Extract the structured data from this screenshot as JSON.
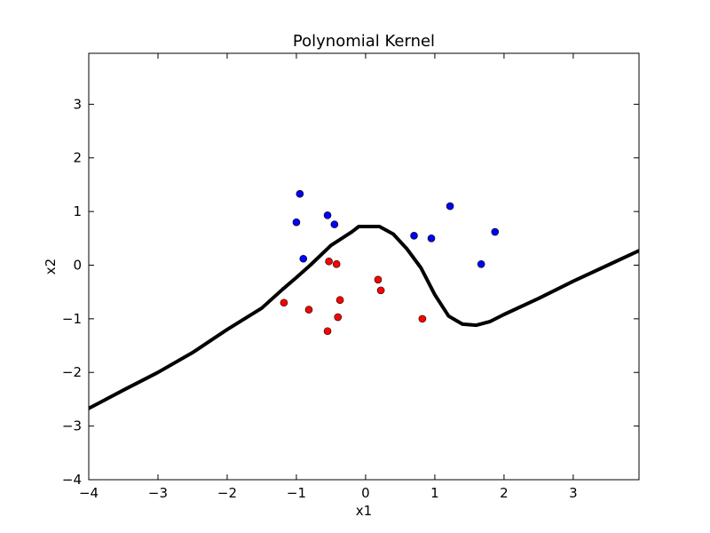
{
  "chart_data": {
    "type": "scatter",
    "title": "Polynomial Kernel",
    "xlabel": "x1",
    "ylabel": "x2",
    "xlim": [
      -4,
      3.95
    ],
    "ylim": [
      -4,
      3.95
    ],
    "grid": false,
    "x_ticks": [
      -4,
      -3,
      -2,
      -1,
      0,
      1,
      2,
      3
    ],
    "y_ticks": [
      -4,
      -3,
      -2,
      -1,
      0,
      1,
      2,
      3
    ],
    "x_tick_labels": [
      "−4",
      "−3",
      "−2",
      "−1",
      "0",
      "1",
      "2",
      "3"
    ],
    "y_tick_labels": [
      "−4",
      "−3",
      "−2",
      "−1",
      "0",
      "1",
      "2",
      "3"
    ],
    "colors": {
      "class_a": "#0000ff",
      "class_b": "#ff0000",
      "boundary": "#000000"
    },
    "series": [
      {
        "points": [
          [
            -0.95,
            1.33
          ],
          [
            -1.0,
            0.8
          ],
          [
            -0.55,
            0.93
          ],
          [
            -0.45,
            0.76
          ],
          [
            -0.9,
            0.12
          ],
          [
            0.7,
            0.55
          ],
          [
            0.95,
            0.5
          ],
          [
            1.22,
            1.1
          ],
          [
            1.87,
            0.62
          ],
          [
            1.67,
            0.02
          ]
        ]
      },
      {
        "points": [
          [
            -1.18,
            -0.7
          ],
          [
            -0.82,
            -0.83
          ],
          [
            -0.53,
            0.07
          ],
          [
            -0.42,
            0.02
          ],
          [
            -0.37,
            -0.65
          ],
          [
            -0.4,
            -0.97
          ],
          [
            -0.55,
            -1.23
          ],
          [
            0.18,
            -0.27
          ],
          [
            0.22,
            -0.47
          ],
          [
            0.82,
            -1.0
          ]
        ]
      }
    ],
    "boundary_curve": [
      [
        -4.0,
        -2.67
      ],
      [
        -3.5,
        -2.33
      ],
      [
        -3.0,
        -2.0
      ],
      [
        -2.5,
        -1.63
      ],
      [
        -2.0,
        -1.2
      ],
      [
        -1.5,
        -0.8
      ],
      [
        -1.2,
        -0.45
      ],
      [
        -1.0,
        -0.23
      ],
      [
        -0.8,
        0.0
      ],
      [
        -0.5,
        0.37
      ],
      [
        -0.2,
        0.62
      ],
      [
        -0.1,
        0.72
      ],
      [
        0.2,
        0.72
      ],
      [
        0.4,
        0.58
      ],
      [
        0.6,
        0.3
      ],
      [
        0.8,
        -0.05
      ],
      [
        1.0,
        -0.55
      ],
      [
        1.2,
        -0.95
      ],
      [
        1.4,
        -1.1
      ],
      [
        1.6,
        -1.12
      ],
      [
        1.8,
        -1.05
      ],
      [
        2.0,
        -0.92
      ],
      [
        2.5,
        -0.62
      ],
      [
        3.0,
        -0.3
      ],
      [
        3.5,
        0.0
      ],
      [
        3.95,
        0.27
      ]
    ]
  }
}
